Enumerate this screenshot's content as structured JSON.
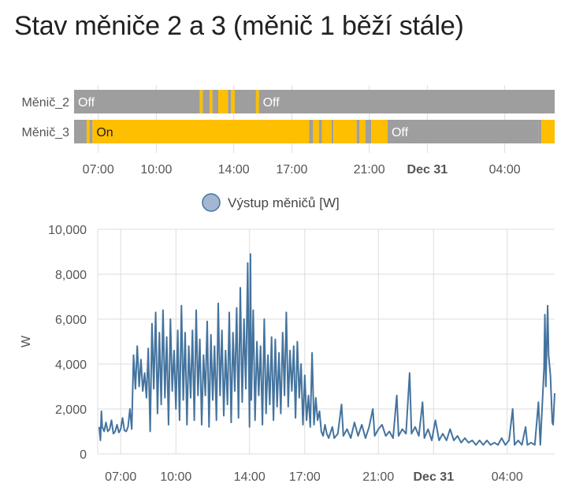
{
  "page": {
    "title": "Stav měniče 2 a 3 (měnič 1 běží stále)"
  },
  "colors": {
    "on": "#fdbf00",
    "off": "#9e9e9e",
    "line": "#44739e",
    "legend_fill": "#a3b7d2",
    "grid": "#dddddd",
    "axis_text": "#555555"
  },
  "chart_data": [
    {
      "type": "timeline",
      "x_range": [
        "05:45",
        "06:35"
      ],
      "x_ticks": [
        {
          "label": "07:00",
          "hour": 7,
          "bold": false
        },
        {
          "label": "10:00",
          "hour": 10,
          "bold": false
        },
        {
          "label": "14:00",
          "hour": 14,
          "bold": false
        },
        {
          "label": "17:00",
          "hour": 17,
          "bold": false
        },
        {
          "label": "21:00",
          "hour": 21,
          "bold": false
        },
        {
          "label": "Dec 31",
          "hour": 24,
          "bold": true
        },
        {
          "label": "04:00",
          "hour": 28,
          "bold": false
        }
      ],
      "rows": [
        {
          "name": "Měnič_2",
          "segments": [
            {
              "start": 5.75,
              "end": 12.25,
              "state": "Off",
              "label": "Off"
            },
            {
              "start": 12.25,
              "end": 12.4,
              "state": "On",
              "label": ""
            },
            {
              "start": 12.4,
              "end": 12.75,
              "state": "Off",
              "label": ""
            },
            {
              "start": 12.75,
              "end": 12.9,
              "state": "On",
              "label": ""
            },
            {
              "start": 12.9,
              "end": 13.2,
              "state": "Off",
              "label": ""
            },
            {
              "start": 13.2,
              "end": 13.7,
              "state": "On",
              "label": ""
            },
            {
              "start": 13.7,
              "end": 13.85,
              "state": "Off",
              "label": ""
            },
            {
              "start": 13.85,
              "end": 14.05,
              "state": "On",
              "label": ""
            },
            {
              "start": 14.05,
              "end": 15.15,
              "state": "Off",
              "label": ""
            },
            {
              "start": 15.15,
              "end": 15.3,
              "state": "On",
              "label": ""
            },
            {
              "start": 15.3,
              "end": 30.58,
              "state": "Off",
              "label": "Off"
            }
          ]
        },
        {
          "name": "Měnič_3",
          "segments": [
            {
              "start": 5.75,
              "end": 6.4,
              "state": "Off",
              "label": ""
            },
            {
              "start": 6.4,
              "end": 6.55,
              "state": "On",
              "label": ""
            },
            {
              "start": 6.55,
              "end": 6.7,
              "state": "Off",
              "label": ""
            },
            {
              "start": 6.7,
              "end": 17.9,
              "state": "On",
              "label": "On"
            },
            {
              "start": 17.9,
              "end": 18.1,
              "state": "Off",
              "label": ""
            },
            {
              "start": 18.1,
              "end": 18.4,
              "state": "On",
              "label": ""
            },
            {
              "start": 18.4,
              "end": 18.55,
              "state": "Off",
              "label": ""
            },
            {
              "start": 18.55,
              "end": 19.05,
              "state": "On",
              "label": ""
            },
            {
              "start": 19.05,
              "end": 19.15,
              "state": "Off",
              "label": ""
            },
            {
              "start": 19.15,
              "end": 20.35,
              "state": "On",
              "label": ""
            },
            {
              "start": 20.35,
              "end": 20.5,
              "state": "Off",
              "label": ""
            },
            {
              "start": 20.5,
              "end": 20.8,
              "state": "On",
              "label": ""
            },
            {
              "start": 20.8,
              "end": 21.1,
              "state": "Off",
              "label": ""
            },
            {
              "start": 21.1,
              "end": 21.95,
              "state": "On",
              "label": ""
            },
            {
              "start": 21.95,
              "end": 29.75,
              "state": "Off",
              "label": "Off"
            },
            {
              "start": 29.75,
              "end": 29.9,
              "state": "Off",
              "label": ""
            },
            {
              "start": 29.9,
              "end": 30.58,
              "state": "On",
              "label": ""
            }
          ]
        }
      ]
    },
    {
      "type": "line",
      "legend": "Výstup měničů [W]",
      "ylabel": "W",
      "xlabel": "",
      "ylim": [
        0,
        10000
      ],
      "y_ticks": [
        "0",
        "2,000",
        "4,000",
        "6,000",
        "8,000",
        "10,000"
      ],
      "y_tick_values": [
        0,
        2000,
        4000,
        6000,
        8000,
        10000
      ],
      "x_ticks": [
        {
          "label": "07:00",
          "hour": 7,
          "bold": false
        },
        {
          "label": "10:00",
          "hour": 10,
          "bold": false
        },
        {
          "label": "14:00",
          "hour": 14,
          "bold": false
        },
        {
          "label": "17:00",
          "hour": 17,
          "bold": false
        },
        {
          "label": "21:00",
          "hour": 21,
          "bold": false
        },
        {
          "label": "Dec 31",
          "hour": 24,
          "bold": true
        },
        {
          "label": "04:00",
          "hour": 28,
          "bold": false
        }
      ],
      "series": [
        {
          "name": "Výstup měničů [W]",
          "points": [
            [
              5.83,
              1200
            ],
            [
              5.9,
              600
            ],
            [
              5.95,
              1900
            ],
            [
              6.0,
              1200
            ],
            [
              6.1,
              1000
            ],
            [
              6.2,
              1400
            ],
            [
              6.3,
              1000
            ],
            [
              6.4,
              1100
            ],
            [
              6.5,
              1500
            ],
            [
              6.6,
              900
            ],
            [
              6.7,
              1000
            ],
            [
              6.8,
              1300
            ],
            [
              6.9,
              950
            ],
            [
              7.0,
              1100
            ],
            [
              7.1,
              1600
            ],
            [
              7.2,
              1050
            ],
            [
              7.3,
              1000
            ],
            [
              7.4,
              1200
            ],
            [
              7.5,
              2000
            ],
            [
              7.6,
              1100
            ],
            [
              7.7,
              4400
            ],
            [
              7.8,
              2900
            ],
            [
              7.9,
              4800
            ],
            [
              8.0,
              3000
            ],
            [
              8.1,
              4200
            ],
            [
              8.2,
              2800
            ],
            [
              8.3,
              3600
            ],
            [
              8.4,
              2500
            ],
            [
              8.5,
              4700
            ],
            [
              8.6,
              1000
            ],
            [
              8.7,
              5800
            ],
            [
              8.8,
              2900
            ],
            [
              8.9,
              6300
            ],
            [
              9.0,
              1800
            ],
            [
              9.1,
              5400
            ],
            [
              9.2,
              2200
            ],
            [
              9.3,
              6400
            ],
            [
              9.4,
              2500
            ],
            [
              9.5,
              5200
            ],
            [
              9.6,
              1300
            ],
            [
              9.7,
              6000
            ],
            [
              9.8,
              2800
            ],
            [
              9.9,
              4600
            ],
            [
              10.0,
              2000
            ],
            [
              10.1,
              5500
            ],
            [
              10.2,
              1500
            ],
            [
              10.3,
              6600
            ],
            [
              10.4,
              2400
            ],
            [
              10.5,
              5400
            ],
            [
              10.6,
              1300
            ],
            [
              10.7,
              4800
            ],
            [
              10.8,
              2500
            ],
            [
              10.9,
              5500
            ],
            [
              11.0,
              1500
            ],
            [
              11.1,
              6400
            ],
            [
              11.2,
              2600
            ],
            [
              11.3,
              5100
            ],
            [
              11.4,
              1300
            ],
            [
              11.5,
              4400
            ],
            [
              11.6,
              2600
            ],
            [
              11.7,
              5900
            ],
            [
              11.8,
              1200
            ],
            [
              11.9,
              5300
            ],
            [
              12.0,
              2400
            ],
            [
              12.1,
              4800
            ],
            [
              12.2,
              1500
            ],
            [
              12.3,
              6700
            ],
            [
              12.4,
              2600
            ],
            [
              12.5,
              5500
            ],
            [
              12.6,
              1700
            ],
            [
              12.7,
              4600
            ],
            [
              12.8,
              2200
            ],
            [
              12.9,
              6300
            ],
            [
              13.0,
              1400
            ],
            [
              13.1,
              5400
            ],
            [
              13.2,
              2800
            ],
            [
              13.3,
              6500
            ],
            [
              13.4,
              1600
            ],
            [
              13.5,
              7400
            ],
            [
              13.6,
              2300
            ],
            [
              13.7,
              6000
            ],
            [
              13.8,
              2900
            ],
            [
              13.9,
              8500
            ],
            [
              14.0,
              1200
            ],
            [
              14.05,
              8900
            ],
            [
              14.1,
              2400
            ],
            [
              14.2,
              6400
            ],
            [
              14.3,
              1500
            ],
            [
              14.4,
              5000
            ],
            [
              14.5,
              2600
            ],
            [
              14.6,
              4800
            ],
            [
              14.7,
              1300
            ],
            [
              14.8,
              6000
            ],
            [
              14.9,
              1800
            ],
            [
              15.0,
              4400
            ],
            [
              15.1,
              2200
            ],
            [
              15.2,
              5200
            ],
            [
              15.3,
              1500
            ],
            [
              15.4,
              5100
            ],
            [
              15.5,
              2100
            ],
            [
              15.6,
              4500
            ],
            [
              15.7,
              1800
            ],
            [
              15.8,
              5400
            ],
            [
              15.9,
              2600
            ],
            [
              16.0,
              6300
            ],
            [
              16.1,
              2100
            ],
            [
              16.2,
              4600
            ],
            [
              16.3,
              2800
            ],
            [
              16.4,
              4800
            ],
            [
              16.5,
              1600
            ],
            [
              16.6,
              5000
            ],
            [
              16.7,
              2500
            ],
            [
              16.8,
              4000
            ],
            [
              16.9,
              1300
            ],
            [
              17.0,
              3500
            ],
            [
              17.1,
              1500
            ],
            [
              17.2,
              2600
            ],
            [
              17.3,
              1200
            ],
            [
              17.4,
              4500
            ],
            [
              17.5,
              1300
            ],
            [
              17.6,
              2500
            ],
            [
              17.7,
              1500
            ],
            [
              17.8,
              1900
            ],
            [
              17.9,
              1000
            ],
            [
              18.0,
              800
            ],
            [
              18.1,
              1300
            ],
            [
              18.2,
              900
            ],
            [
              18.3,
              700
            ],
            [
              18.5,
              1200
            ],
            [
              18.6,
              700
            ],
            [
              18.8,
              900
            ],
            [
              19.0,
              2200
            ],
            [
              19.1,
              800
            ],
            [
              19.3,
              1100
            ],
            [
              19.5,
              700
            ],
            [
              19.7,
              1400
            ],
            [
              19.9,
              800
            ],
            [
              20.1,
              1300
            ],
            [
              20.3,
              700
            ],
            [
              20.5,
              1200
            ],
            [
              20.7,
              2000
            ],
            [
              20.8,
              800
            ],
            [
              21.0,
              1100
            ],
            [
              21.2,
              1300
            ],
            [
              21.4,
              800
            ],
            [
              21.6,
              1000
            ],
            [
              21.8,
              700
            ],
            [
              22.0,
              2600
            ],
            [
              22.1,
              800
            ],
            [
              22.3,
              1100
            ],
            [
              22.5,
              900
            ],
            [
              22.7,
              3600
            ],
            [
              22.8,
              900
            ],
            [
              23.0,
              1200
            ],
            [
              23.2,
              800
            ],
            [
              23.4,
              2300
            ],
            [
              23.5,
              700
            ],
            [
              23.7,
              1100
            ],
            [
              23.9,
              600
            ],
            [
              24.1,
              1500
            ],
            [
              24.3,
              600
            ],
            [
              24.5,
              900
            ],
            [
              24.7,
              600
            ],
            [
              24.9,
              1100
            ],
            [
              25.1,
              600
            ],
            [
              25.3,
              800
            ],
            [
              25.5,
              500
            ],
            [
              25.7,
              700
            ],
            [
              25.9,
              500
            ],
            [
              26.1,
              600
            ],
            [
              26.3,
              400
            ],
            [
              26.5,
              600
            ],
            [
              26.7,
              400
            ],
            [
              26.9,
              600
            ],
            [
              27.1,
              400
            ],
            [
              27.3,
              500
            ],
            [
              27.5,
              400
            ],
            [
              27.7,
              700
            ],
            [
              27.9,
              400
            ],
            [
              28.1,
              600
            ],
            [
              28.3,
              2000
            ],
            [
              28.4,
              400
            ],
            [
              28.6,
              600
            ],
            [
              28.8,
              400
            ],
            [
              29.0,
              1200
            ],
            [
              29.1,
              400
            ],
            [
              29.3,
              500
            ],
            [
              29.5,
              400
            ],
            [
              29.7,
              2300
            ],
            [
              29.8,
              400
            ],
            [
              30.0,
              3800
            ],
            [
              30.05,
              6200
            ],
            [
              30.1,
              3000
            ],
            [
              30.2,
              6600
            ],
            [
              30.25,
              4400
            ],
            [
              30.35,
              3500
            ],
            [
              30.45,
              1400
            ],
            [
              30.5,
              1300
            ],
            [
              30.58,
              2700
            ]
          ]
        }
      ]
    }
  ]
}
